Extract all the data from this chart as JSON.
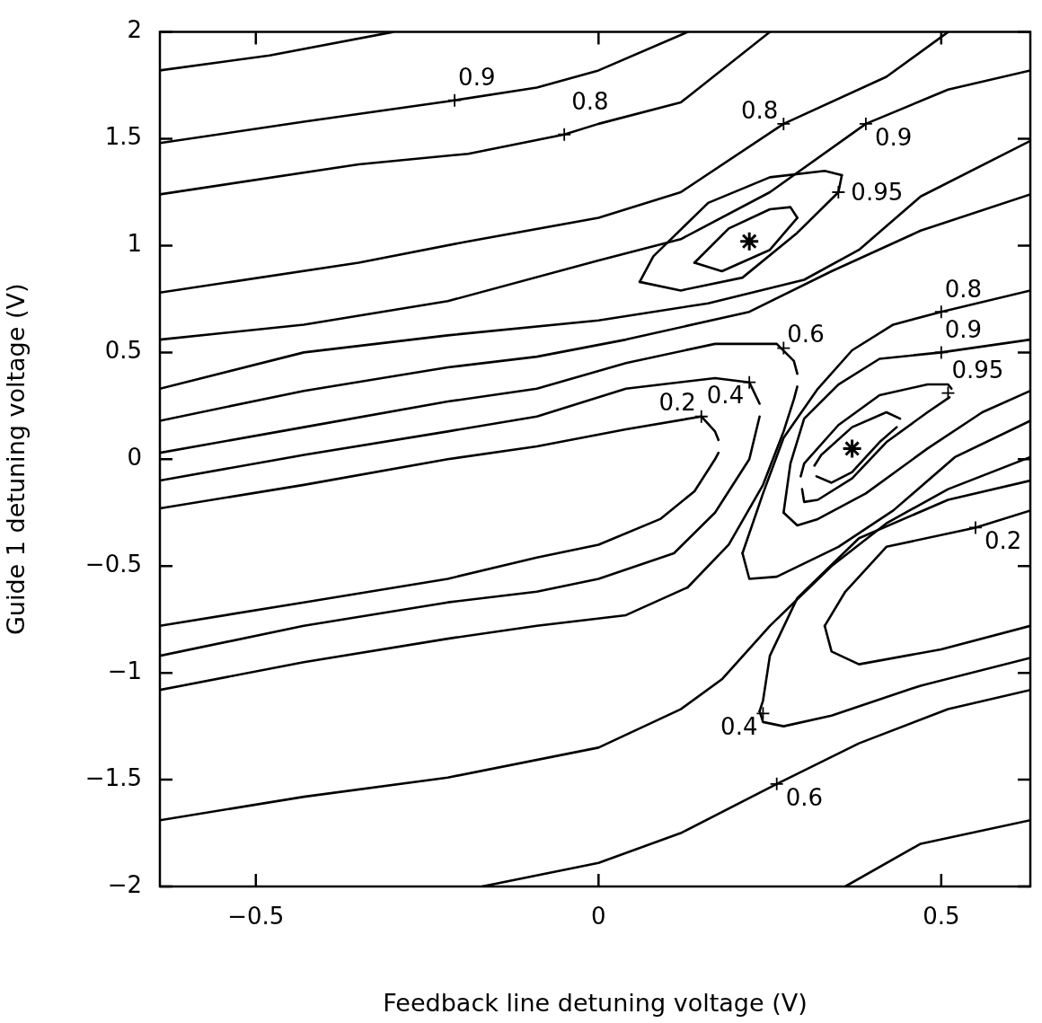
{
  "chart_data": {
    "type": "line",
    "xlabel": "Feedback line detuning voltage (V)",
    "ylabel": "Guide 1 detuning voltage (V)",
    "xlim": [
      -0.64,
      0.63
    ],
    "xticks": [
      -0.5,
      0,
      0.5
    ],
    "ylim": [
      -2,
      2
    ],
    "yticks": [
      -2,
      -1.5,
      -1,
      -0.5,
      0,
      0.5,
      1,
      1.5,
      2
    ],
    "series": [
      {
        "color": "#000000",
        "x": [
          -0.64,
          -0.48,
          -0.3
        ],
        "values": [
          1.82,
          1.89,
          2.0
        ]
      },
      {
        "color": "#000000",
        "x": [
          -0.64,
          -0.43,
          -0.21,
          -0.09,
          0.0,
          0.13
        ],
        "values": [
          1.48,
          1.58,
          1.68,
          1.74,
          1.82,
          2.0
        ]
      },
      {
        "color": "#000000",
        "x": [
          -0.64,
          -0.35,
          -0.19,
          -0.05,
          0.0,
          0.12,
          0.25
        ],
        "values": [
          1.24,
          1.38,
          1.43,
          1.52,
          1.57,
          1.67,
          2.0
        ]
      },
      {
        "color": "#000000",
        "x": [
          -0.64,
          -0.35,
          -0.19,
          0.0,
          0.12,
          0.27,
          0.42,
          0.51
        ],
        "values": [
          0.78,
          0.92,
          1.02,
          1.13,
          1.25,
          1.57,
          1.79,
          2.0
        ]
      },
      {
        "color": "#000000",
        "x": [
          -0.64,
          -0.43,
          -0.22,
          0.0,
          0.12,
          0.25,
          0.39,
          0.51,
          0.63
        ],
        "values": [
          0.56,
          0.63,
          0.74,
          0.93,
          1.03,
          1.25,
          1.57,
          1.73,
          1.82
        ]
      },
      {
        "color": "#000000",
        "x": [
          0.06,
          0.08,
          0.16,
          0.25,
          0.33,
          0.355
        ],
        "values": [
          0.83,
          0.95,
          1.2,
          1.32,
          1.35,
          1.33
        ]
      },
      {
        "color": "#000000",
        "x": [
          0.06,
          0.12,
          0.21,
          0.29,
          0.35,
          0.355
        ],
        "values": [
          0.83,
          0.79,
          0.85,
          1.06,
          1.25,
          1.33
        ]
      },
      {
        "color": "#000000",
        "x": [
          0.14,
          0.19,
          0.25,
          0.28,
          0.29
        ],
        "values": [
          0.92,
          1.08,
          1.17,
          1.18,
          1.13
        ]
      },
      {
        "color": "#000000",
        "x": [
          0.14,
          0.18,
          0.25,
          0.29
        ],
        "values": [
          0.92,
          0.88,
          0.98,
          1.13
        ]
      },
      {
        "color": "#000000",
        "x": [
          -0.64,
          -0.43,
          -0.22,
          0.0,
          0.16,
          0.3,
          0.38,
          0.47,
          0.63
        ],
        "values": [
          0.33,
          0.5,
          0.58,
          0.65,
          0.73,
          0.84,
          0.98,
          1.23,
          1.49
        ]
      },
      {
        "color": "#000000",
        "x": [
          -0.64,
          -0.43,
          -0.22,
          -0.09,
          0.04,
          0.22,
          0.34,
          0.47,
          0.63
        ],
        "values": [
          0.18,
          0.32,
          0.43,
          0.48,
          0.56,
          0.69,
          0.88,
          1.07,
          1.24
        ]
      },
      {
        "color": "#000000",
        "x": [
          -0.64,
          -0.43,
          -0.22,
          -0.09,
          0.04,
          0.17,
          0.26,
          0.285,
          0.29
        ],
        "values": [
          0.03,
          0.15,
          0.27,
          0.33,
          0.45,
          0.54,
          0.54,
          0.46,
          0.4
        ]
      },
      {
        "color": "#000000",
        "x": [
          -0.64,
          -0.43,
          -0.22,
          -0.09,
          0.04,
          0.13,
          0.19,
          0.24,
          0.27,
          0.285,
          0.29
        ],
        "values": [
          -1.08,
          -0.95,
          -0.84,
          -0.78,
          -0.73,
          -0.6,
          -0.4,
          -0.12,
          0.13,
          0.28,
          0.34
        ]
      },
      {
        "color": "#000000",
        "x": [
          -0.64,
          -0.43,
          -0.22,
          -0.09,
          0.04,
          0.17,
          0.22,
          0.235
        ],
        "values": [
          -0.1,
          0.02,
          0.13,
          0.2,
          0.33,
          0.38,
          0.36,
          0.26
        ]
      },
      {
        "color": "#000000",
        "x": [
          -0.64,
          -0.43,
          -0.22,
          -0.09,
          0.0,
          0.11,
          0.17,
          0.22,
          0.235
        ],
        "values": [
          -0.92,
          -0.78,
          -0.67,
          -0.62,
          -0.56,
          -0.44,
          -0.25,
          0.0,
          0.2
        ]
      },
      {
        "color": "#000000",
        "x": [
          -0.64,
          -0.43,
          -0.22,
          -0.09,
          0.04,
          0.15,
          0.17,
          0.175
        ],
        "values": [
          -0.23,
          -0.12,
          0.0,
          0.06,
          0.14,
          0.2,
          0.13,
          0.09
        ]
      },
      {
        "color": "#000000",
        "x": [
          -0.64,
          -0.43,
          -0.22,
          -0.09,
          0.0,
          0.09,
          0.14,
          0.17,
          0.175
        ],
        "values": [
          -0.78,
          -0.67,
          -0.56,
          -0.46,
          -0.4,
          -0.28,
          -0.15,
          0.0,
          0.03
        ]
      },
      {
        "color": "#000000",
        "x": [
          0.315,
          0.325,
          0.37,
          0.42,
          0.44
        ],
        "values": [
          -0.03,
          0.02,
          0.15,
          0.22,
          0.19
        ]
      },
      {
        "color": "#000000",
        "x": [
          0.318,
          0.34,
          0.37,
          0.41,
          0.435
        ],
        "values": [
          -0.08,
          -0.11,
          -0.06,
          0.08,
          0.15
        ]
      },
      {
        "color": "#000000",
        "x": [
          0.295,
          0.3,
          0.35,
          0.41,
          0.48,
          0.51,
          0.515
        ],
        "values": [
          -0.08,
          -0.02,
          0.16,
          0.3,
          0.35,
          0.35,
          0.33
        ]
      },
      {
        "color": "#000000",
        "x": [
          0.297,
          0.3,
          0.32,
          0.37,
          0.42,
          0.48,
          0.512
        ],
        "values": [
          -0.14,
          -0.2,
          -0.19,
          -0.09,
          0.08,
          0.22,
          0.29
        ]
      },
      {
        "color": "#000000",
        "x": [
          0.27,
          0.28,
          0.3,
          0.35,
          0.41,
          0.5,
          0.63
        ],
        "values": [
          -0.25,
          -0.02,
          0.19,
          0.35,
          0.47,
          0.5,
          0.56
        ]
      },
      {
        "color": "#000000",
        "x": [
          0.27,
          0.29,
          0.32,
          0.39,
          0.48,
          0.56,
          0.63
        ],
        "values": [
          -0.25,
          -0.31,
          -0.28,
          -0.16,
          0.05,
          0.22,
          0.32
        ]
      },
      {
        "color": "#000000",
        "x": [
          0.21,
          0.24,
          0.27,
          0.32,
          0.37,
          0.43,
          0.5,
          0.63
        ],
        "values": [
          -0.44,
          -0.16,
          0.1,
          0.33,
          0.51,
          0.63,
          0.69,
          0.79
        ]
      },
      {
        "color": "#000000",
        "x": [
          0.21,
          0.22,
          0.26,
          0.35,
          0.43,
          0.52,
          0.63
        ],
        "values": [
          -0.44,
          -0.56,
          -0.55,
          -0.41,
          -0.24,
          0.01,
          0.18
        ]
      },
      {
        "color": "#000000",
        "x": [
          -0.64,
          -0.43,
          -0.22,
          0.0,
          0.12,
          0.18,
          0.25,
          0.34,
          0.42,
          0.51,
          0.63
        ],
        "values": [
          -1.69,
          -1.58,
          -1.49,
          -1.35,
          -1.17,
          -1.03,
          -0.78,
          -0.5,
          -0.3,
          -0.14,
          0.01
        ]
      },
      {
        "color": "#000000",
        "x": [
          0.235,
          0.24,
          0.25,
          0.29,
          0.38,
          0.51,
          0.63
        ],
        "values": [
          -1.18,
          -1.13,
          -0.92,
          -0.65,
          -0.37,
          -0.19,
          -0.1
        ]
      },
      {
        "color": "#000000",
        "x": [
          0.235,
          0.24,
          0.27,
          0.34,
          0.47,
          0.63
        ],
        "values": [
          -1.18,
          -1.23,
          -1.25,
          -1.2,
          -1.06,
          -0.93
        ]
      },
      {
        "color": "#000000",
        "x": [
          0.33,
          0.36,
          0.42,
          0.55,
          0.63
        ],
        "values": [
          -0.78,
          -0.62,
          -0.41,
          -0.32,
          -0.24
        ]
      },
      {
        "color": "#000000",
        "x": [
          0.33,
          0.34,
          0.38,
          0.5,
          0.63
        ],
        "values": [
          -0.78,
          -0.9,
          -0.96,
          -0.89,
          -0.78
        ]
      },
      {
        "color": "#000000",
        "x": [
          -0.17,
          0.0,
          0.12,
          0.26,
          0.38,
          0.51,
          0.63
        ],
        "values": [
          -2.0,
          -1.89,
          -1.75,
          -1.52,
          -1.33,
          -1.17,
          -1.08
        ]
      },
      {
        "color": "#000000",
        "x": [
          0.36,
          0.47,
          0.63
        ],
        "values": [
          -2.0,
          -1.8,
          -1.69
        ]
      },
      {
        "type": "scatter",
        "marker": "cross",
        "color": "#000000",
        "x": [
          0.22,
          0.37
        ],
        "values": [
          1.02,
          0.05
        ]
      }
    ],
    "annotations": [
      {
        "text": "0.9",
        "x": -0.21,
        "y": 1.68
      },
      {
        "text": "0.8",
        "x": -0.05,
        "y": 1.52
      },
      {
        "text": "0.8",
        "x": 0.27,
        "y": 1.57
      },
      {
        "text": "0.9",
        "x": 0.39,
        "y": 1.57
      },
      {
        "text": "0.95",
        "x": 0.35,
        "y": 1.25
      },
      {
        "text": "0.8",
        "x": 0.5,
        "y": 0.69
      },
      {
        "text": "0.9",
        "x": 0.5,
        "y": 0.5
      },
      {
        "text": "0.6",
        "x": 0.27,
        "y": 0.52
      },
      {
        "text": "0.4",
        "x": 0.22,
        "y": 0.36
      },
      {
        "text": "0.95",
        "x": 0.51,
        "y": 0.31
      },
      {
        "text": "0.2",
        "x": 0.15,
        "y": 0.2
      },
      {
        "text": "0.2",
        "x": 0.55,
        "y": -0.32
      },
      {
        "text": "0.4",
        "x": 0.24,
        "y": -1.19
      },
      {
        "text": "0.6",
        "x": 0.26,
        "y": -1.52
      }
    ]
  }
}
